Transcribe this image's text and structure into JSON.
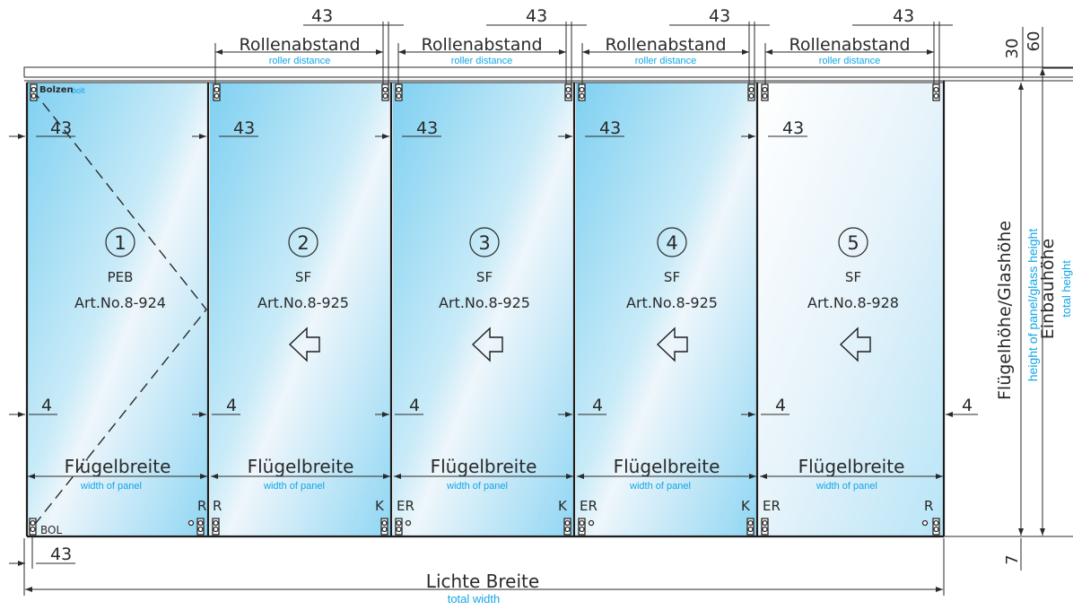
{
  "colors": {
    "glass_light": "#eef6fb",
    "glass_blue": "#8fd6f3",
    "annotation_blue": "#12a6e6",
    "line": "#2a2a2a"
  },
  "labels": {
    "roller_distance_de": "Rollenabstand",
    "roller_distance_en": "roller distance",
    "dim_43": "43",
    "dim_4": "4",
    "dim_30": "30",
    "dim_60": "60",
    "dim_7": "7",
    "panel_width_de": "Flügelbreite",
    "panel_width_en": "width of panel",
    "bolt_de": "Bolzen",
    "bolt_en": "bolt",
    "bol": "BOL",
    "clear_width_de": "Lichte Breite",
    "clear_width_en": "total width",
    "panel_height_de": "Flügelhöhe/Glashöhe",
    "panel_height_en": "height of panel/glass height",
    "install_height_de": "Einbauhöhe",
    "install_height_en": "total height"
  },
  "panels": [
    {
      "num": "1",
      "type": "PEB",
      "art": "Art.No.8-924"
    },
    {
      "num": "2",
      "type": "SF",
      "art": "Art.No.8-925"
    },
    {
      "num": "3",
      "type": "SF",
      "art": "Art.No.8-925"
    },
    {
      "num": "4",
      "type": "SF",
      "art": "Art.No.8-925"
    },
    {
      "num": "5",
      "type": "SF",
      "art": "Art.No.8-928"
    }
  ],
  "bottom_marks": {
    "p1": {
      "right": "R"
    },
    "p2": {
      "left": "R",
      "right": "K"
    },
    "p3": {
      "left": "ER",
      "right": "K"
    },
    "p4": {
      "left": "ER",
      "right": "K"
    },
    "p5": {
      "left": "ER",
      "right": "R"
    }
  }
}
